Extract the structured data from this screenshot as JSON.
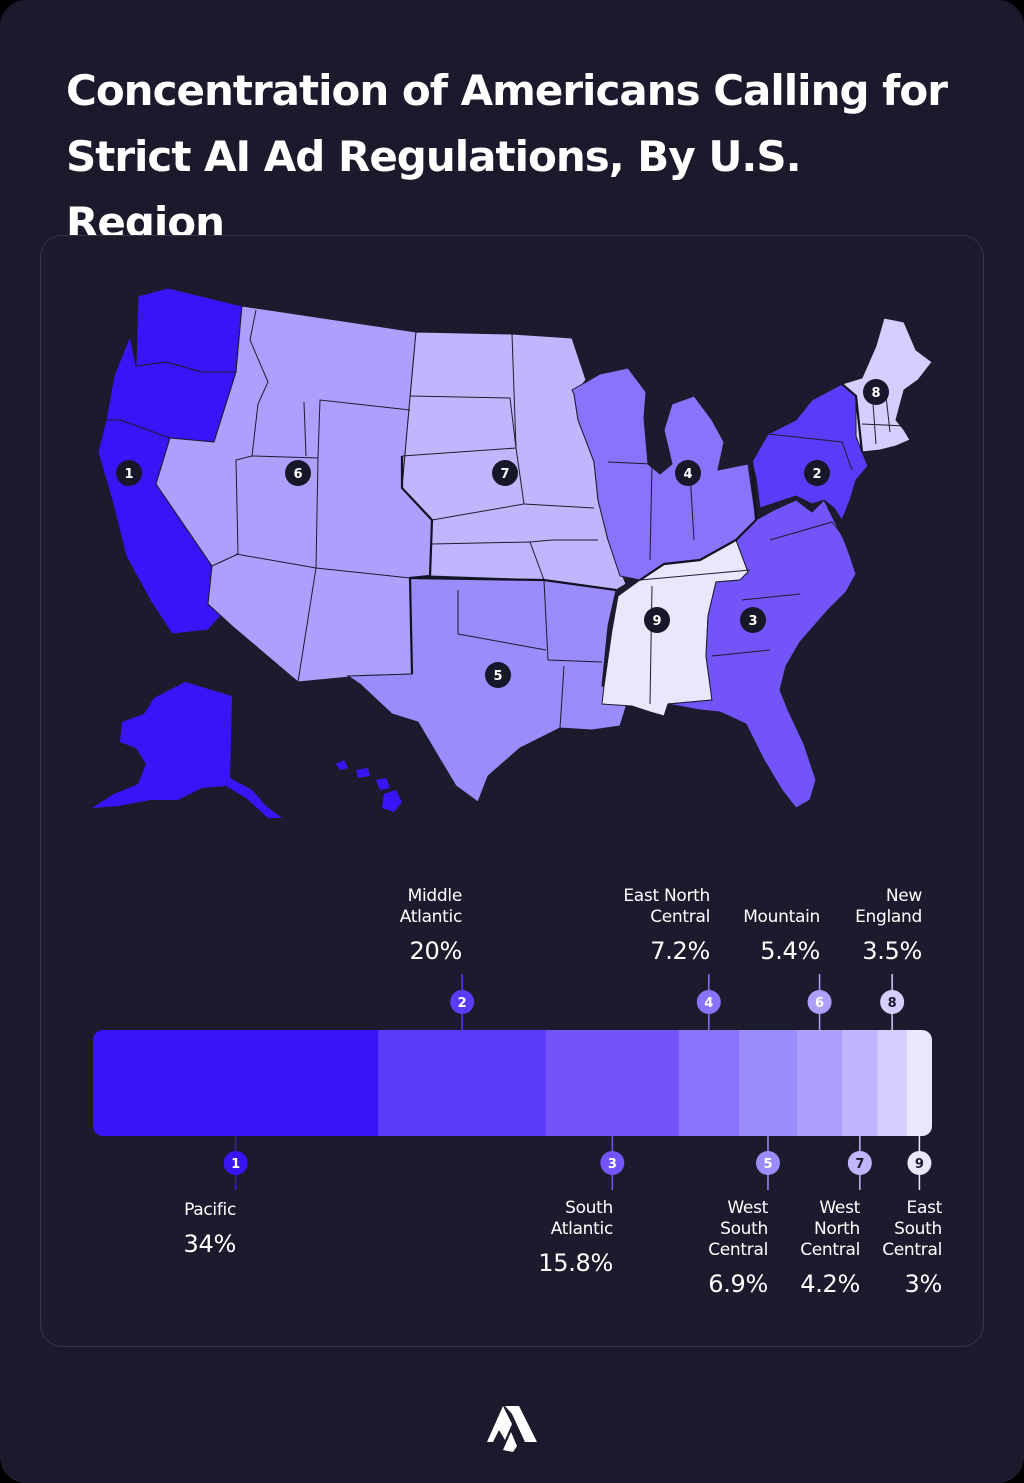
{
  "title": "Concentration of Americans Calling for Strict AI Ad Regulations, By U.S. Region",
  "colors": {
    "page_background": "#1b1a2c",
    "card_border": "#34344a",
    "marker": "#17172a",
    "shades": [
      "#3a14f6",
      "#5a3cf8",
      "#7254f8",
      "#8a72fa",
      "#9a8cfb",
      "#ad9ffc",
      "#c1b6fd",
      "#d6cefe",
      "#e9e6fe"
    ]
  },
  "regions": [
    {
      "rank": "1",
      "name": "Pacific",
      "percent": "34%"
    },
    {
      "rank": "2",
      "name": "Middle\nAtlantic",
      "percent": "20%"
    },
    {
      "rank": "3",
      "name": "South\nAtlantic",
      "percent": "15.8%"
    },
    {
      "rank": "4",
      "name": "East North\nCentral",
      "percent": "7.2%"
    },
    {
      "rank": "5",
      "name": "West\nSouth\nCentral",
      "percent": "6.9%"
    },
    {
      "rank": "6",
      "name": "Mountain",
      "percent": "5.4%"
    },
    {
      "rank": "7",
      "name": "West\nNorth\nCentral",
      "percent": "4.2%"
    },
    {
      "rank": "8",
      "name": "New\nEngland",
      "percent": "3.5%"
    },
    {
      "rank": "9",
      "name": "East\nSouth\nCentral",
      "percent": "3%"
    }
  ],
  "chart_data": {
    "type": "bar",
    "orientation": "horizontal-stacked",
    "categories": [
      "Pacific",
      "Middle Atlantic",
      "South Atlantic",
      "East North Central",
      "West South Central",
      "Mountain",
      "West North Central",
      "New England",
      "East South Central"
    ],
    "values": [
      34,
      20,
      15.8,
      7.2,
      6.9,
      5.4,
      4.2,
      3.5,
      3
    ],
    "title": "Concentration of Americans Calling for Strict AI Ad Regulations, By U.S. Region"
  },
  "icons": {
    "brand": "brand-logo-icon"
  }
}
